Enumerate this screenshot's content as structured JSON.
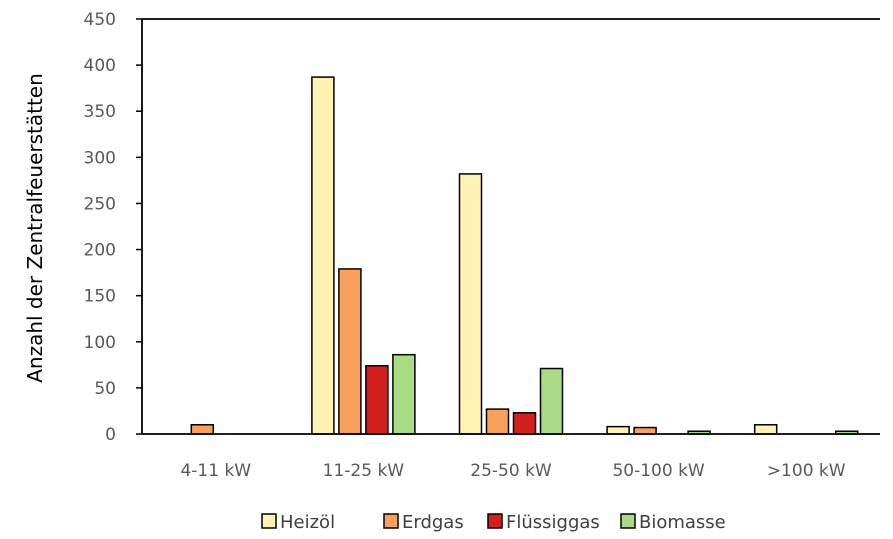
{
  "chart_data": {
    "type": "bar",
    "title": "",
    "xlabel": "",
    "ylabel": "Anzahl der Zentralfeuerstätten",
    "ylim": [
      0,
      450
    ],
    "yticks": [
      0,
      50,
      100,
      150,
      200,
      250,
      300,
      350,
      400,
      450
    ],
    "grid": false,
    "legend_position": "bottom",
    "categories": [
      "4-11 kW",
      "11-25 kW",
      "25-50 kW",
      "50-100 kW",
      ">100 kW"
    ],
    "series": [
      {
        "name": "Heizöl",
        "color": "#FFF2B3",
        "values": [
          0,
          387,
          282,
          8,
          10
        ]
      },
      {
        "name": "Erdgas",
        "color": "#F9A05A",
        "values": [
          10,
          179,
          27,
          7,
          0
        ]
      },
      {
        "name": "Flüssiggas",
        "color": "#D41F1F",
        "values": [
          0,
          74,
          23,
          0,
          0
        ]
      },
      {
        "name": "Biomasse",
        "color": "#A9DB85",
        "values": [
          0,
          86,
          71,
          3,
          3
        ]
      }
    ]
  }
}
